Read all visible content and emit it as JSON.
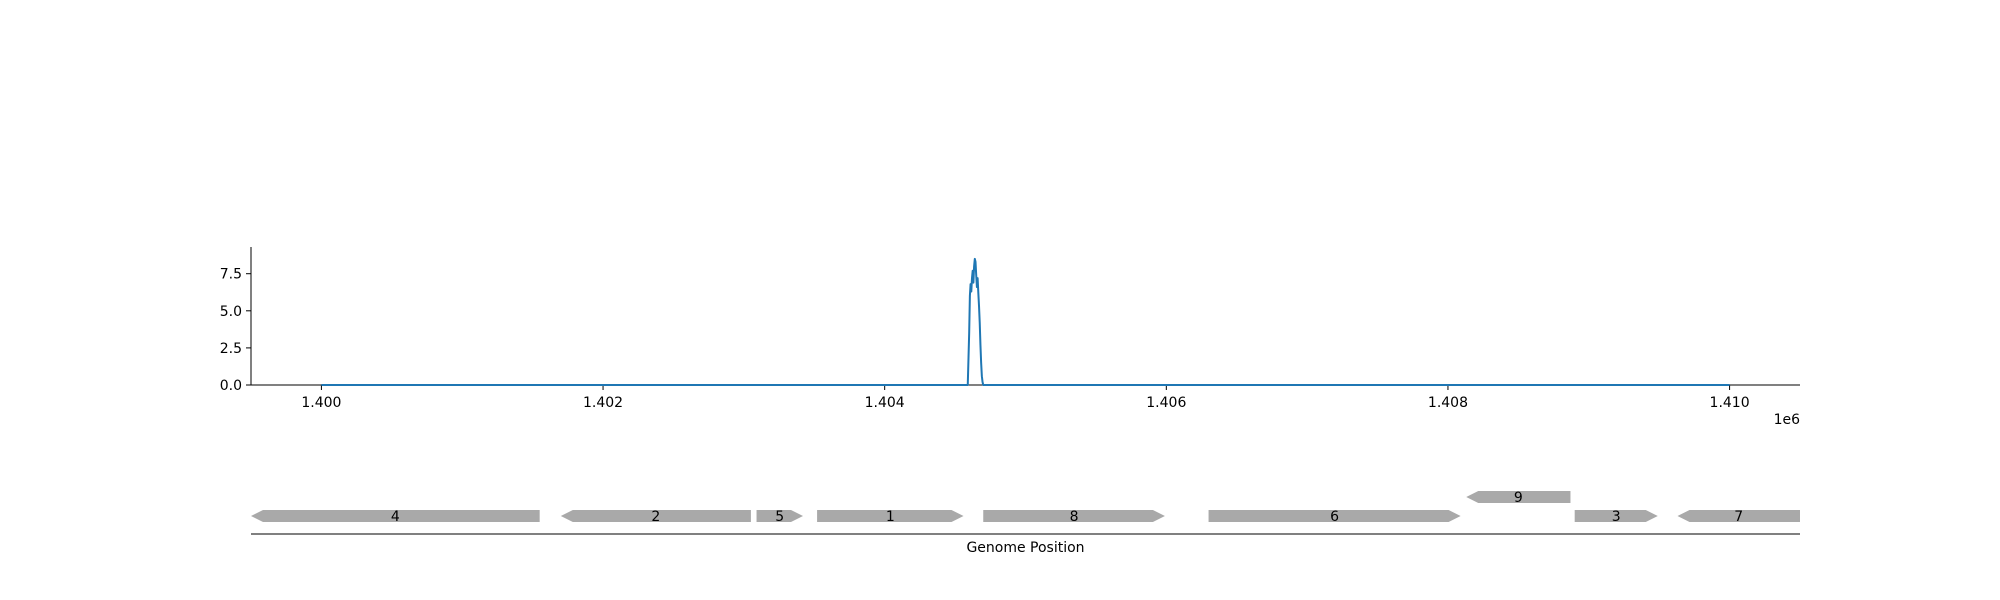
{
  "chart_data": [
    {
      "type": "line",
      "xlim": [
        1399500,
        1410500
      ],
      "ylim": [
        0,
        9.3
      ],
      "x_ticks": [
        1400000,
        1402000,
        1404000,
        1406000,
        1408000,
        1410000
      ],
      "x_tick_labels": [
        "1.400",
        "1.402",
        "1.404",
        "1.406",
        "1.408",
        "1.410"
      ],
      "x_offset_label": "1e6",
      "y_ticks": [
        0,
        2.5,
        5,
        7.5
      ],
      "y_tick_labels": [
        "0.0",
        "2.5",
        "5.0",
        "7.5"
      ],
      "line_color": "#1f77b4",
      "series": [
        {
          "x": [
            1400000,
            1404590,
            1404600,
            1404605,
            1404610,
            1404615,
            1404620,
            1404625,
            1404630,
            1404635,
            1404640,
            1404645,
            1404650,
            1404655,
            1404660,
            1404665,
            1404670,
            1404675,
            1404680,
            1404685,
            1404690,
            1404695,
            1404700,
            1404710,
            1410000
          ],
          "y": [
            0,
            0,
            3.5,
            6.0,
            6.8,
            6.3,
            7.2,
            7.7,
            6.9,
            8.0,
            8.5,
            8.3,
            7.4,
            6.6,
            7.2,
            6.2,
            5.3,
            4.2,
            2.7,
            1.5,
            0.6,
            0.2,
            0,
            0,
            0
          ]
        }
      ],
      "grid": false
    },
    {
      "type": "genes",
      "xlim": [
        1399500,
        1410500
      ],
      "xlabel": "Genome Position",
      "feature_color": "#a9a9a9",
      "features": [
        {
          "label": "4",
          "start": 1399500,
          "end": 1401550,
          "strand": -1,
          "row": 0
        },
        {
          "label": "2",
          "start": 1401700,
          "end": 1403050,
          "strand": -1,
          "row": 0
        },
        {
          "label": "5",
          "start": 1403090,
          "end": 1403420,
          "strand": 1,
          "row": 0
        },
        {
          "label": "1",
          "start": 1403520,
          "end": 1404560,
          "strand": 1,
          "row": 0
        },
        {
          "label": "8",
          "start": 1404700,
          "end": 1405990,
          "strand": 1,
          "row": 0
        },
        {
          "label": "6",
          "start": 1406300,
          "end": 1408090,
          "strand": 1,
          "row": 0
        },
        {
          "label": "9",
          "start": 1408130,
          "end": 1408870,
          "strand": -1,
          "row": 1
        },
        {
          "label": "3",
          "start": 1408900,
          "end": 1409490,
          "strand": 1,
          "row": 0
        },
        {
          "label": "7",
          "start": 1409630,
          "end": 1410500,
          "strand": -1,
          "row": 0
        }
      ]
    }
  ]
}
